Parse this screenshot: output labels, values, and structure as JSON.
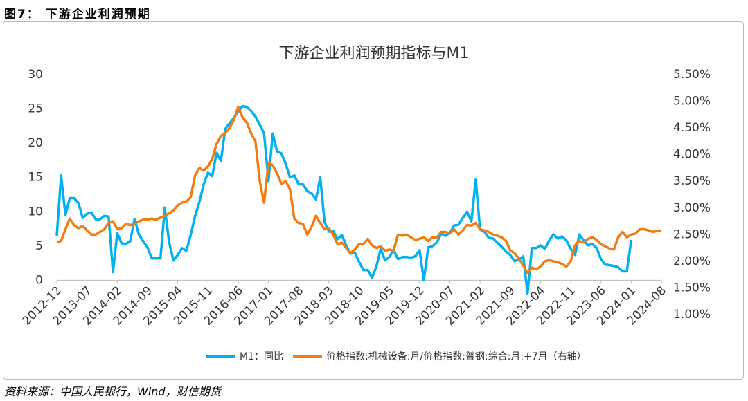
{
  "header": {
    "title": "图7：  下游企业利润预期"
  },
  "source": "资料来源：中国人民银行，Wind，财信期货",
  "chart_data": {
    "type": "line",
    "title": "下游企业利润预期指标与M1",
    "categories": [
      "2012-12",
      null,
      null,
      null,
      null,
      null,
      null,
      "2013-07",
      null,
      null,
      null,
      null,
      null,
      null,
      "2014-02",
      null,
      null,
      null,
      null,
      null,
      null,
      "2014-09",
      null,
      null,
      null,
      null,
      null,
      null,
      "2015-04",
      null,
      null,
      null,
      null,
      null,
      null,
      "2015-11",
      null,
      null,
      null,
      null,
      null,
      null,
      "2016-06",
      null,
      null,
      null,
      null,
      null,
      null,
      "2017-01",
      null,
      null,
      null,
      null,
      null,
      null,
      "2017-08",
      null,
      null,
      null,
      null,
      null,
      null,
      "2018-03",
      null,
      null,
      null,
      null,
      null,
      null,
      "2018-10",
      null,
      null,
      null,
      null,
      null,
      null,
      "2019-05",
      null,
      null,
      null,
      null,
      null,
      null,
      "2019-12",
      null,
      null,
      null,
      null,
      null,
      null,
      "2020-07",
      null,
      null,
      null,
      null,
      null,
      null,
      "2021-02",
      null,
      null,
      null,
      null,
      null,
      null,
      "2021-09",
      null,
      null,
      null,
      null,
      null,
      null,
      "2022-04",
      null,
      null,
      null,
      null,
      null,
      null,
      "2022-11",
      null,
      null,
      null,
      null,
      null,
      null,
      "2023-06",
      null,
      null,
      null,
      null,
      null,
      null,
      "2024-01",
      null,
      null,
      null,
      null,
      null,
      null,
      "2024-08"
    ],
    "series": [
      {
        "name": "M1：同比",
        "color": "#00b0f0",
        "values": [
          6.5,
          15.3,
          9.5,
          12,
          12,
          11.3,
          9.1,
          9.7,
          9.9,
          8.9,
          8.9,
          9.4,
          9.3,
          1.2,
          6.9,
          5.4,
          5.3,
          5.7,
          8.9,
          6.7,
          5.7,
          4.8,
          3.2,
          3.2,
          3.2,
          10.6,
          5.6,
          2.9,
          3.7,
          4.7,
          4.3,
          6.6,
          9.3,
          11.4,
          14,
          15.7,
          15.2,
          18.6,
          17.4,
          22.1,
          22.9,
          23.7,
          24.6,
          25.4,
          25.3,
          24.7,
          23.9,
          22.7,
          21.4,
          14.5,
          21.4,
          18.8,
          18.5,
          17,
          15,
          15.3,
          14,
          14,
          13,
          12.7,
          11.8,
          15.0,
          8.5,
          7.1,
          7.2,
          6,
          6.6,
          5.1,
          3.9,
          4,
          2.7,
          1.5,
          1.5,
          0.4,
          2,
          4.6,
          2.9,
          3.4,
          4.4,
          3.1,
          3.4,
          3.4,
          3.3,
          3.5,
          4.4,
          0.0,
          4.8,
          5,
          5.5,
          6.8,
          6.5,
          6.9,
          8,
          8.1,
          9.1,
          10,
          8.6,
          14.7,
          7.4,
          7.1,
          6.2,
          6.1,
          5.5,
          4.9,
          4.2,
          3.7,
          2.8,
          3,
          3.5,
          -1.9,
          4.7,
          4.7,
          5.1,
          4.6,
          5.8,
          6.7,
          6.1,
          6.4,
          5.8,
          4.6,
          3.7,
          6.7,
          5.8,
          5.1,
          5.3,
          4.7,
          3.1,
          2.3,
          2.2,
          2.1,
          1.9,
          1.3,
          1.3,
          5.9,
          null,
          null,
          null,
          null,
          null,
          null,
          null
        ]
      },
      {
        "name": "价格指数:机械设备:月/价格指数:普钢:综合:月:+7月（右轴）",
        "color": "#f47b0f",
        "axis": "y2",
        "values": [
          2.36,
          2.38,
          2.6,
          2.8,
          2.68,
          2.62,
          2.66,
          2.58,
          2.5,
          2.5,
          2.55,
          2.6,
          2.72,
          2.75,
          2.6,
          2.62,
          2.7,
          2.68,
          2.7,
          2.75,
          2.78,
          2.78,
          2.8,
          2.78,
          2.82,
          2.85,
          2.9,
          2.95,
          3.05,
          3.1,
          3.12,
          3.2,
          3.6,
          3.75,
          3.7,
          3.78,
          3.92,
          4.2,
          4.35,
          4.4,
          4.5,
          4.65,
          4.9,
          4.7,
          4.6,
          4.4,
          4.25,
          3.5,
          3.1,
          3.85,
          3.8,
          3.65,
          3.45,
          3.5,
          3.35,
          2.8,
          2.72,
          2.7,
          2.5,
          2.65,
          2.85,
          2.72,
          2.6,
          2.62,
          2.5,
          2.32,
          2.35,
          2.25,
          2.15,
          2.22,
          2.32,
          2.32,
          2.42,
          2.3,
          2.25,
          2.28,
          2.2,
          2.22,
          2.2,
          2.5,
          2.48,
          2.5,
          2.45,
          2.4,
          2.42,
          2.45,
          2.38,
          2.45,
          2.45,
          2.55,
          2.55,
          2.52,
          2.6,
          2.5,
          2.58,
          2.68,
          2.67,
          2.72,
          2.6,
          2.58,
          2.55,
          2.5,
          2.48,
          2.45,
          2.38,
          2.2,
          2.15,
          2.05,
          1.92,
          1.78,
          1.88,
          1.85,
          1.9,
          2.0,
          2.02,
          2.0,
          1.98,
          1.95,
          1.9,
          2.0,
          2.3,
          2.38,
          2.35,
          2.42,
          2.45,
          2.4,
          2.32,
          2.28,
          2.24,
          2.22,
          2.45,
          2.55,
          2.45,
          2.5,
          2.52,
          2.6,
          2.6,
          2.58,
          2.55,
          2.57,
          2.58
        ]
      }
    ],
    "ylim": [
      -5,
      30
    ],
    "yticks": [
      0,
      5,
      10,
      15,
      20,
      25,
      30
    ],
    "y2lim": [
      1.0,
      5.5
    ],
    "y2ticks": [
      {
        "value": 1.0,
        "label": "1.00%"
      },
      {
        "value": 1.5,
        "label": "1.50%"
      },
      {
        "value": 2.0,
        "label": "2.00%"
      },
      {
        "value": 2.5,
        "label": "2.50%"
      },
      {
        "value": 3.0,
        "label": "3.00%"
      },
      {
        "value": 3.5,
        "label": "3.50%"
      },
      {
        "value": 4.0,
        "label": "4.00%"
      },
      {
        "value": 4.5,
        "label": "4.50%"
      },
      {
        "value": 5.0,
        "label": "5.00%"
      },
      {
        "value": 5.5,
        "label": "5.50%"
      }
    ],
    "legend": "bottom"
  }
}
